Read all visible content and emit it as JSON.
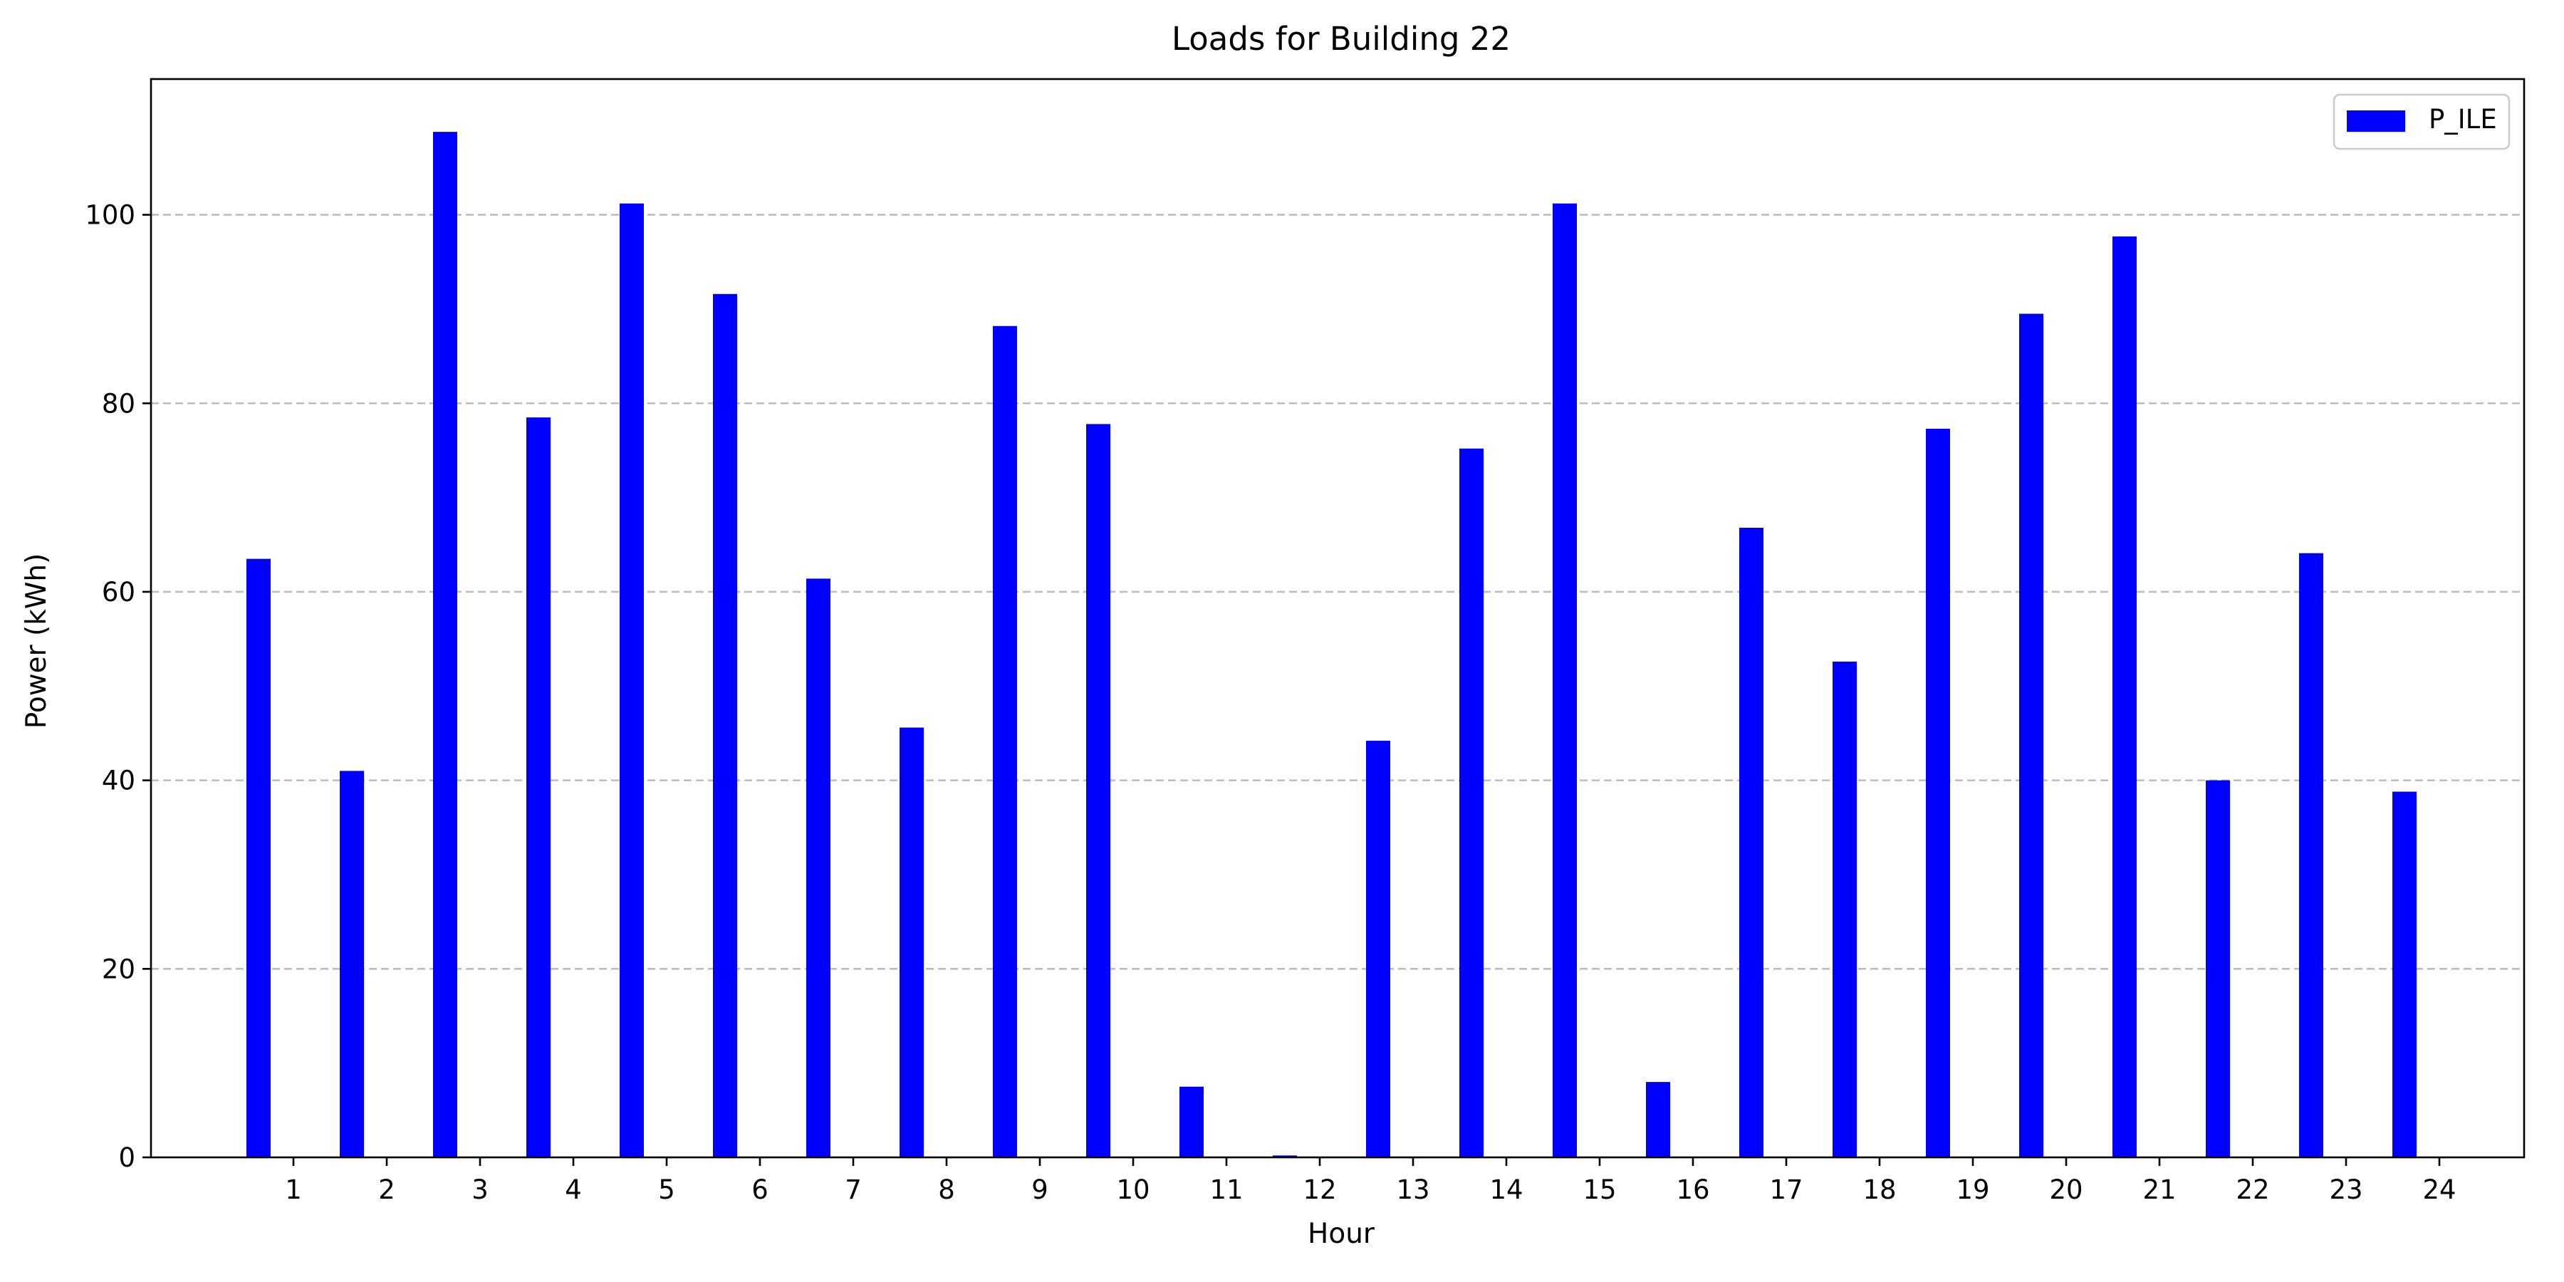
{
  "chart_data": {
    "type": "bar",
    "title": "Loads for Building 22",
    "xlabel": "Hour",
    "ylabel": "Power (kWh)",
    "categories": [
      "1",
      "2",
      "3",
      "4",
      "5",
      "6",
      "7",
      "8",
      "9",
      "10",
      "11",
      "12",
      "13",
      "14",
      "15",
      "16",
      "17",
      "18",
      "19",
      "20",
      "21",
      "22",
      "23",
      "24"
    ],
    "series": [
      {
        "name": "P_ILE",
        "color": "#0000ff",
        "values": [
          63.5,
          41.0,
          108.8,
          78.5,
          101.2,
          91.6,
          61.4,
          45.6,
          88.2,
          77.8,
          7.5,
          0.2,
          44.2,
          75.2,
          101.2,
          8.0,
          66.8,
          52.6,
          77.3,
          89.5,
          97.7,
          40.0,
          64.1,
          38.8
        ]
      }
    ],
    "ylim": [
      0,
      114.4
    ],
    "yticks": [
      "0",
      "20",
      "40",
      "60",
      "80",
      "100"
    ],
    "grid": "y-dashed",
    "legend": "top-right"
  }
}
